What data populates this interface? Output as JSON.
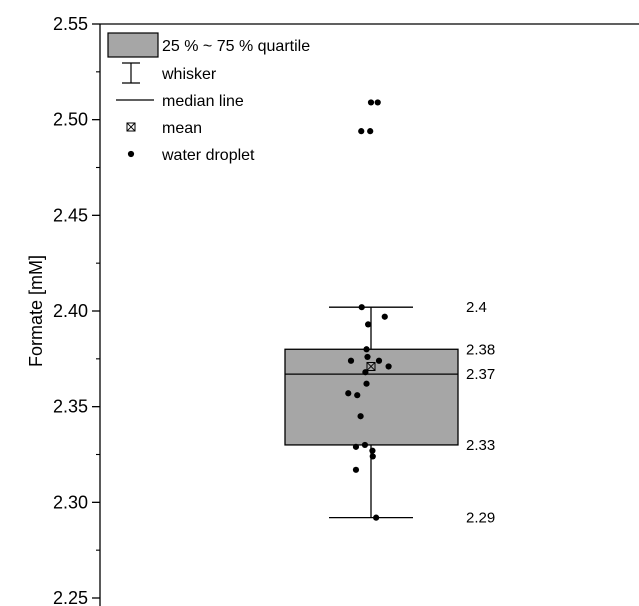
{
  "chart_data": {
    "type": "box",
    "ylabel": "Formate [mM]",
    "ylim": [
      2.25,
      2.55
    ],
    "yticks": [
      "2.25",
      "2.30",
      "2.35",
      "2.40",
      "2.45",
      "2.50",
      "2.55"
    ],
    "box": {
      "q1": 2.33,
      "q3": 2.38,
      "median": 2.367,
      "mean": 2.371,
      "whisker_low": 2.292,
      "whisker_high": 2.402,
      "fill_color": "#a6a6a6"
    },
    "value_labels": [
      {
        "value": 2.402,
        "text": "2.4"
      },
      {
        "value": 2.38,
        "text": "2.38"
      },
      {
        "value": 2.367,
        "text": "2.37"
      },
      {
        "value": 2.33,
        "text": "2.33"
      },
      {
        "value": 2.292,
        "text": "2.29"
      }
    ],
    "points": [
      {
        "x": -0.61,
        "y": 2.494
      },
      {
        "x": -0.05,
        "y": 2.494
      },
      {
        "x": 0.0,
        "y": 2.509
      },
      {
        "x": 0.42,
        "y": 2.509
      },
      {
        "x": -0.58,
        "y": 2.402
      },
      {
        "x": 0.86,
        "y": 2.397
      },
      {
        "x": -0.18,
        "y": 2.393
      },
      {
        "x": -0.28,
        "y": 2.38
      },
      {
        "x": -1.25,
        "y": 2.374
      },
      {
        "x": -0.22,
        "y": 2.376
      },
      {
        "x": 0.5,
        "y": 2.374
      },
      {
        "x": 1.1,
        "y": 2.371
      },
      {
        "x": -0.35,
        "y": 2.368
      },
      {
        "x": -0.28,
        "y": 2.362
      },
      {
        "x": -1.42,
        "y": 2.357
      },
      {
        "x": -0.86,
        "y": 2.356
      },
      {
        "x": -0.65,
        "y": 2.345
      },
      {
        "x": -0.94,
        "y": 2.329
      },
      {
        "x": -0.38,
        "y": 2.33
      },
      {
        "x": 0.09,
        "y": 2.327
      },
      {
        "x": 0.11,
        "y": 2.324
      },
      {
        "x": -0.94,
        "y": 2.317
      },
      {
        "x": 0.32,
        "y": 2.292
      }
    ],
    "legend": {
      "placement": "top-left",
      "entries": [
        {
          "label": "25 % ~ 75 % quartile",
          "symbol": "box"
        },
        {
          "label": "whisker",
          "symbol": "whisker"
        },
        {
          "label": "median line",
          "symbol": "line"
        },
        {
          "label": "mean",
          "symbol": "mean-marker"
        },
        {
          "label": "water droplet",
          "symbol": "dot"
        }
      ]
    }
  }
}
